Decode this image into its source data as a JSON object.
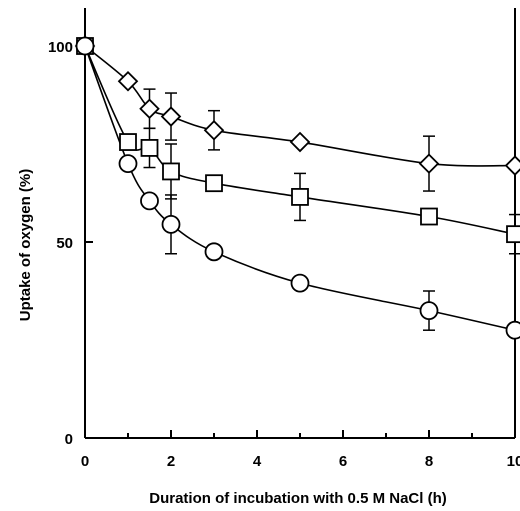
{
  "chart_data": {
    "type": "line",
    "xlabel": "Duration of incubation with 0.5 M NaCl (h)",
    "ylabel": "Uptake of oxygen (%)",
    "xlim": [
      0,
      10
    ],
    "ylim": [
      0,
      100
    ],
    "x_ticks": [
      0,
      2,
      4,
      6,
      8,
      10
    ],
    "y_ticks": [
      0,
      50,
      100
    ],
    "x_tick_labels": [
      "0",
      "2",
      "4",
      "6",
      "8",
      "10"
    ],
    "y_tick_labels": [
      "0",
      "50",
      "100"
    ],
    "grid": false,
    "legend": "none",
    "series": [
      {
        "marker": "diamond",
        "x": [
          0,
          1,
          1.5,
          2,
          3,
          5,
          8,
          10
        ],
        "y": [
          100,
          91,
          84,
          82,
          78.5,
          75.5,
          70,
          69.5
        ],
        "error": [
          0,
          0,
          5,
          6,
          5,
          0,
          7,
          0
        ]
      },
      {
        "marker": "square",
        "x": [
          0,
          1,
          1.5,
          2,
          3,
          5,
          8,
          10
        ],
        "y": [
          100,
          75.5,
          74,
          68,
          65,
          61.5,
          56.5,
          52
        ],
        "error": [
          0,
          0,
          5,
          7,
          0,
          6,
          0,
          5
        ]
      },
      {
        "marker": "circle",
        "x": [
          0,
          1,
          1.5,
          2,
          3,
          5,
          8,
          10
        ],
        "y": [
          100,
          70,
          60.5,
          54.5,
          47.5,
          39.5,
          32.5,
          27.5
        ],
        "error": [
          0,
          0,
          0,
          7.5,
          0,
          0,
          5,
          0
        ]
      }
    ]
  }
}
